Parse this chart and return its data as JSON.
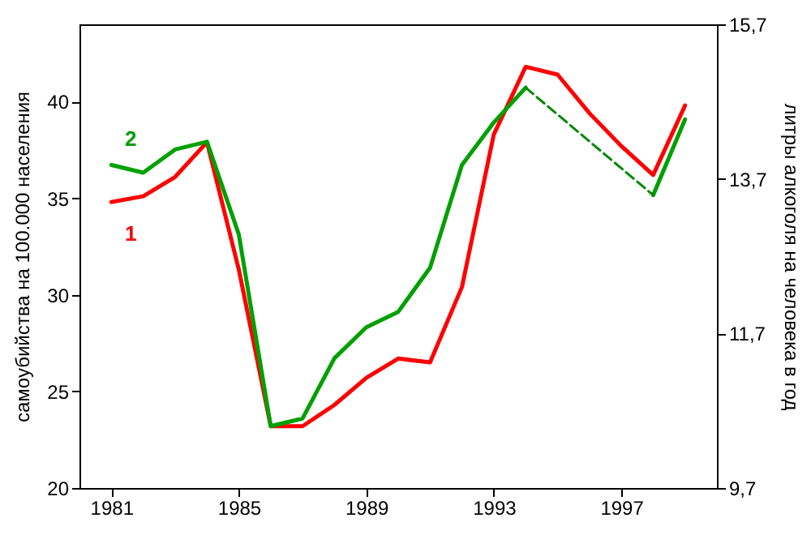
{
  "chart_data": {
    "type": "line",
    "xlabel": null,
    "ylabel": "самоубийства на 100.000 населения",
    "y2label": "литры алкоголя на человека в год",
    "x": [
      1981,
      1982,
      1983,
      1984,
      1985,
      1986,
      1987,
      1988,
      1989,
      1990,
      1991,
      1992,
      1993,
      1994,
      1995,
      1996,
      1997,
      1998,
      1999
    ],
    "series": [
      {
        "name": "1",
        "color": "#ff0000",
        "values": [
          34.8,
          35.1,
          36.1,
          37.9,
          31.3,
          23.2,
          23.2,
          24.3,
          25.7,
          26.7,
          26.5,
          30.4,
          38.3,
          41.8,
          41.4,
          39.4,
          37.7,
          36.2,
          39.8
        ]
      },
      {
        "name": "2",
        "color": "#00a000",
        "axis": "y2",
        "values": [
          13.88,
          13.78,
          14.08,
          14.18,
          12.98,
          10.5,
          10.6,
          11.38,
          11.78,
          11.98,
          12.55,
          13.88,
          14.43,
          14.88,
          null,
          null,
          null,
          13.49,
          14.47
        ]
      },
      {
        "type": "line",
        "color": "#008800",
        "axis": "y2",
        "line_style": "dashed",
        "x": [
          1994,
          1998
        ],
        "values": [
          14.88,
          13.49
        ]
      }
    ],
    "xlim": [
      1980,
      2000
    ],
    "xticks": [
      1981,
      1985,
      1989,
      1993,
      1997
    ],
    "ylim": [
      20,
      44
    ],
    "yticks": [
      20,
      25,
      30,
      35,
      40
    ],
    "y2lim": [
      9.7,
      15.7
    ],
    "y2ticks": [
      {
        "value": 9.7,
        "label": "9,7"
      },
      {
        "value": 11.7,
        "label": "11,7"
      },
      {
        "value": 13.7,
        "label": "13,7"
      },
      {
        "value": 15.7,
        "label": "15,7"
      }
    ],
    "grid": false,
    "line_style": "solid",
    "marker": "none"
  }
}
